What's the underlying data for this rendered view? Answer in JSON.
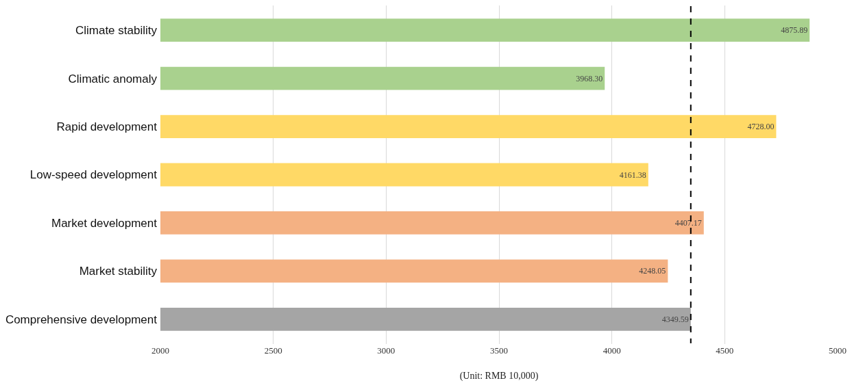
{
  "chart_data": {
    "type": "bar",
    "orientation": "horizontal",
    "xlabel": "(Unit: RMB 10,000)",
    "categories": [
      "Climate stability",
      "Climatic anomaly",
      "Rapid development",
      "Low-speed development",
      "Market development",
      "Market stability",
      "Comprehensive development"
    ],
    "values": [
      4875.89,
      3968.3,
      4728.0,
      4161.38,
      4407.17,
      4248.05,
      4349.59
    ],
    "value_labels": [
      "4875.89",
      "3968.30",
      "4728.00",
      "4161.38",
      "4407.17",
      "4248.05",
      "4349.59"
    ],
    "colors": [
      "#a9d18e",
      "#a9d18e",
      "#ffd966",
      "#ffd966",
      "#f4b183",
      "#f4b183",
      "#a5a5a5"
    ],
    "xlim": [
      2000,
      5000
    ],
    "xticks": [
      2000,
      2500,
      3000,
      3500,
      4000,
      4500,
      5000
    ],
    "ref_lines": [
      {
        "axis": "x",
        "value": 4349.59,
        "color": "#000000",
        "line_style": "dashed"
      }
    ],
    "grid": "x"
  }
}
